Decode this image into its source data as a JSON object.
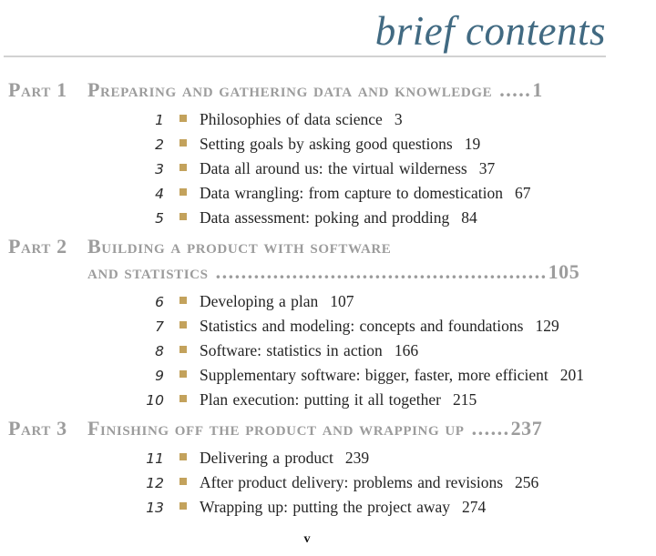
{
  "page": {
    "title": "brief contents",
    "footer_page_number": "v"
  },
  "colors": {
    "title_blue": "#416a82",
    "part_gray": "#9c9c9c",
    "bullet_gold": "#c3a25c",
    "body_text": "#242424"
  },
  "parts": [
    {
      "label": "Part 1",
      "title": "Preparing and gathering data and knowledge",
      "dots": ".....",
      "page": "1",
      "chapters": [
        {
          "num": "1",
          "title": "Philosophies of data science",
          "page": "3"
        },
        {
          "num": "2",
          "title": "Setting goals by asking good questions",
          "page": "19"
        },
        {
          "num": "3",
          "title": "Data all around us: the virtual wilderness",
          "page": "37"
        },
        {
          "num": "4",
          "title": "Data wrangling: from capture to domestication",
          "page": "67"
        },
        {
          "num": "5",
          "title": "Data assessment: poking and prodding",
          "page": "84"
        }
      ]
    },
    {
      "label": "Part 2",
      "title": "Building a product with software",
      "title2": "and statistics",
      "dots": "....................................................",
      "page": "105",
      "chapters": [
        {
          "num": "6",
          "title": "Developing a plan",
          "page": "107"
        },
        {
          "num": "7",
          "title": "Statistics and modeling: concepts and foundations",
          "page": "129"
        },
        {
          "num": "8",
          "title": "Software: statistics in action",
          "page": "166"
        },
        {
          "num": "9",
          "title": "Supplementary software: bigger, faster, more efficient",
          "page": "201"
        },
        {
          "num": "10",
          "title": "Plan execution: putting it all together",
          "page": "215"
        }
      ]
    },
    {
      "label": "Part 3",
      "title": "Finishing off the product and wrapping up",
      "dots": "......",
      "page": "237",
      "chapters": [
        {
          "num": "11",
          "title": "Delivering a product",
          "page": "239"
        },
        {
          "num": "12",
          "title": "After product delivery: problems and revisions",
          "page": "256"
        },
        {
          "num": "13",
          "title": "Wrapping up: putting the project away",
          "page": "274"
        }
      ]
    }
  ]
}
